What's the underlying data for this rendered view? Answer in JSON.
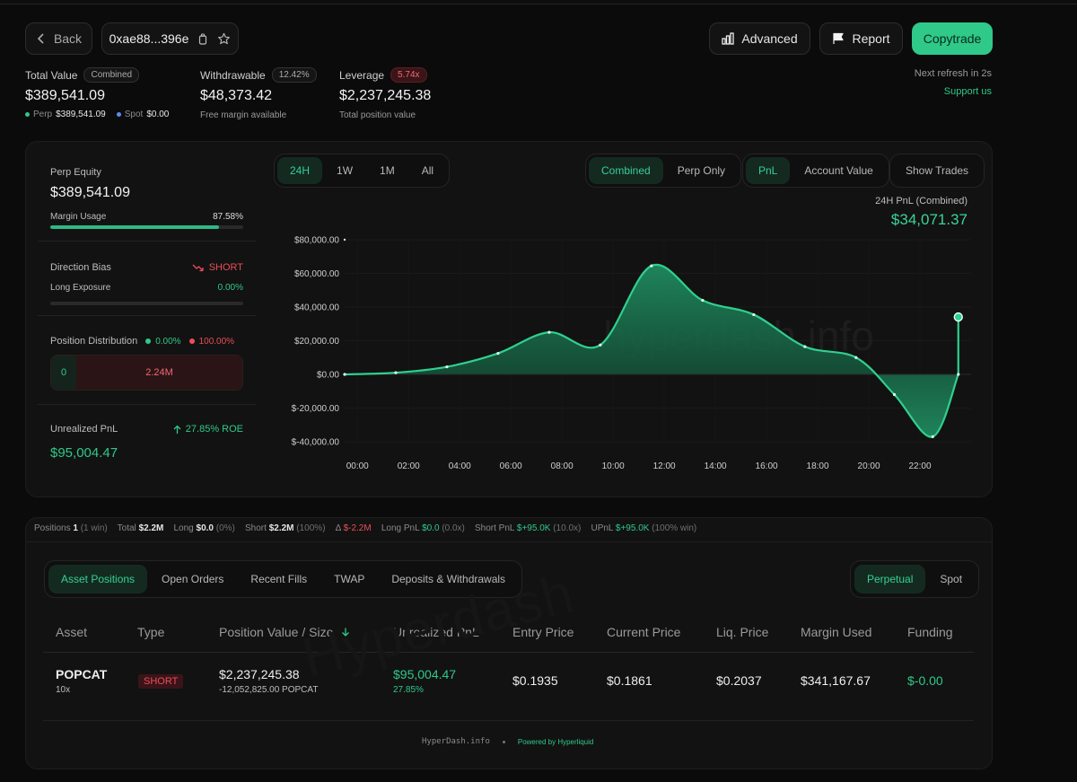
{
  "header": {
    "back_label": "Back",
    "address": "0xae88...396e",
    "advanced_label": "Advanced",
    "report_label": "Report",
    "copytrade_label": "Copytrade",
    "refresh_text": "Next refresh in 2s",
    "support_label": "Support us"
  },
  "summary": {
    "total_value_label": "Total Value",
    "total_value_badge": "Combined",
    "total_value": "$389,541.09",
    "perp_label": "Perp",
    "perp_value": "$389,541.09",
    "spot_label": "Spot",
    "spot_value": "$0.00",
    "withdrawable_label": "Withdrawable",
    "withdrawable_badge": "12.42%",
    "withdrawable_value": "$48,373.42",
    "withdrawable_sub": "Free margin available",
    "leverage_label": "Leverage",
    "leverage_badge": "5.74x",
    "leverage_value": "$2,237,245.38",
    "leverage_sub": "Total position value"
  },
  "left_panel": {
    "perp_equity_label": "Perp Equity",
    "perp_equity_value": "$389,541.09",
    "margin_usage_label": "Margin Usage",
    "margin_usage_value": "87.58%",
    "margin_usage_fraction": 0.8758,
    "direction_bias_label": "Direction Bias",
    "direction_bias_value": "SHORT",
    "long_exposure_label": "Long Exposure",
    "long_exposure_value": "0.00%",
    "long_exposure_fraction": 0.0,
    "position_distribution_label": "Position Distribution",
    "dist_long_pct": "0.00%",
    "dist_short_pct": "100.00%",
    "dist_long_value": "0",
    "dist_short_value": "2.24M",
    "unrealized_pnl_label": "Unrealized PnL",
    "roe_text": "27.85% ROE",
    "unrealized_pnl_value": "$95,004.47"
  },
  "chart_controls": {
    "time_tabs": [
      "24H",
      "1W",
      "1M",
      "All"
    ],
    "active_time": "24H",
    "mode_tabs": [
      "Combined",
      "Perp Only"
    ],
    "active_mode": "Combined",
    "metric_tabs": [
      "PnL",
      "Account Value"
    ],
    "active_metric": "PnL",
    "show_trades_label": "Show Trades",
    "pnl_label": "24H PnL (Combined)",
    "pnl_value": "$34,071.37",
    "watermark": "hyperdash.info"
  },
  "chart_data": {
    "type": "area",
    "x_ticks": [
      "00:00",
      "02:00",
      "04:00",
      "06:00",
      "08:00",
      "10:00",
      "12:00",
      "14:00",
      "16:00",
      "18:00",
      "20:00",
      "22:00"
    ],
    "y_ticks": [
      "$80,000.00",
      "$60,000.00",
      "$40,000.00",
      "$20,000.00",
      "$0.00",
      "$-20,000.00",
      "$-40,000.00"
    ],
    "ylim": [
      -40000,
      80000
    ],
    "xlim": [
      -0.5,
      24
    ],
    "series": [
      {
        "x": [
          -0.5,
          1.5,
          3.5,
          5.5,
          7.5,
          9.5,
          11.5,
          13.5,
          15.5,
          17.5,
          19.5,
          21,
          22.5,
          23.5,
          23.5
        ],
        "y": [
          0,
          1000,
          4500,
          12500,
          25000,
          17500,
          64500,
          44000,
          35500,
          16500,
          10000,
          -12000,
          -37000,
          0,
          34071.37
        ]
      }
    ],
    "colors": {
      "line": "#2fd08f",
      "fill": "#1d7a55"
    }
  },
  "stats": {
    "positions_label": "Positions",
    "positions_value": "1",
    "positions_note": "(1 win)",
    "total_label": "Total",
    "total_value": "$2.2M",
    "long_label": "Long",
    "long_value": "$0.0",
    "long_note": "(0%)",
    "short_label": "Short",
    "short_value": "$2.2M",
    "short_note": "(100%)",
    "delta_label": "Δ",
    "delta_value": "$-2.2M",
    "longpnl_label": "Long PnL",
    "longpnl_value": "$0.0",
    "longpnl_note": "(0.0x)",
    "shortpnl_label": "Short PnL",
    "shortpnl_value": "$+95.0K",
    "shortpnl_note": "(10.0x)",
    "upnl_label": "UPnL",
    "upnl_value": "$+95.0K",
    "upnl_note": "(100% win)"
  },
  "tabs": {
    "items": [
      "Asset Positions",
      "Open Orders",
      "Recent Fills",
      "TWAP",
      "Deposits & Withdrawals"
    ],
    "active": "Asset Positions",
    "market_items": [
      "Perpetual",
      "Spot"
    ],
    "market_active": "Perpetual"
  },
  "table": {
    "columns": [
      "Asset",
      "Type",
      "Position Value / Size",
      "Unrealized PnL",
      "Entry Price",
      "Current Price",
      "Liq. Price",
      "Margin Used",
      "Funding"
    ],
    "rows": [
      {
        "asset": "POPCAT",
        "leverage": "10x",
        "type": "SHORT",
        "position_value": "$2,237,245.38",
        "position_size": "-12,052,825.00 POPCAT",
        "pnl": "$95,004.47",
        "pnl_pct": "27.85%",
        "entry_price": "$0.1935",
        "current_price": "$0.1861",
        "liq_price": "$0.2037",
        "margin_used": "$341,167.67",
        "funding": "$-0.00"
      }
    ],
    "watermark": "Hyperdash"
  },
  "footer": {
    "brand": "HyperDash.info",
    "powered": "Powered by Hyperliquid"
  },
  "colors": {
    "accent": "#2fc98a",
    "danger": "#ea4e58",
    "background": "#0b0b0b",
    "card": "#121212"
  }
}
